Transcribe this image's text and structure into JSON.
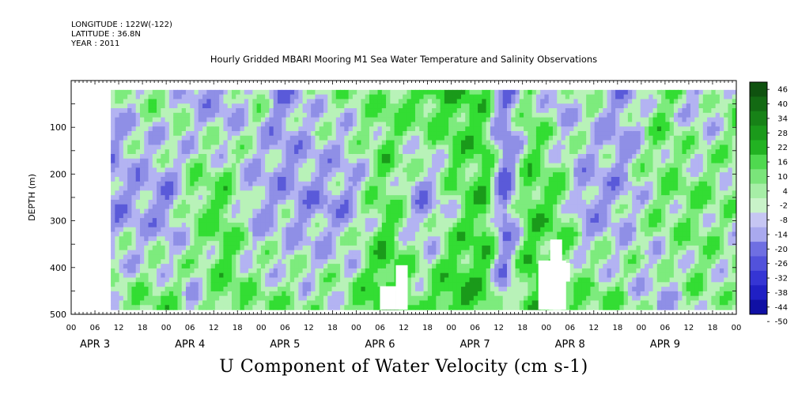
{
  "header": {
    "longitude": "LONGITUDE : 122W(-122)",
    "latitude": "LATITUDE : 36.8N",
    "year": "YEAR : 2011",
    "title": "Hourly Gridded MBARI Mooring M1 Sea Water Temperature and Salinity Observations"
  },
  "caption": "U Component of Water Velocity (cm s-1)",
  "chart_data": {
    "type": "heatmap",
    "title": "Hourly Gridded MBARI Mooring M1 Sea Water Temperature and Salinity Observations",
    "xlabel": "",
    "ylabel": "DEPTH (m)",
    "variable": "U Component of Water Velocity (cm s-1)",
    "x_range": [
      "APR 3 00:00",
      "APR 10 00:00"
    ],
    "y_range": [
      0,
      500
    ],
    "y_inverted": true,
    "y_ticks": [
      100,
      200,
      300,
      400,
      500
    ],
    "x_day_labels": [
      "APR 3",
      "APR 4",
      "APR 5",
      "APR 6",
      "APR 7",
      "APR 8",
      "APR 9"
    ],
    "x_hour_labels": [
      "00",
      "06",
      "12",
      "18",
      "00",
      "06",
      "12",
      "18",
      "00",
      "06",
      "12",
      "18",
      "00",
      "06",
      "12",
      "18",
      "00",
      "06",
      "12",
      "18",
      "00",
      "06",
      "12",
      "18",
      "00",
      "06",
      "12",
      "18",
      "00"
    ],
    "colorbar_levels": [
      -50,
      -44,
      -38,
      -32,
      -26,
      -20,
      -14,
      -8,
      -2,
      4,
      10,
      16,
      22,
      28,
      34,
      40,
      46
    ],
    "colorbar_labels": [
      "46",
      "40",
      "34",
      "28",
      "22",
      "16",
      "10",
      "4",
      "-2",
      "-8",
      "-14",
      "-20",
      "-26",
      "-32",
      "-38",
      "-44",
      "-50"
    ],
    "colors": {
      "negative_light": "#b3b3f2",
      "negative_mid": "#8f8fe6",
      "negative_dark": "#5a5ad9",
      "near_zero_pos": "#b8f2b8",
      "positive_light": "#7deb7d",
      "positive_mid": "#33dd33",
      "positive_dark": "#1a9a1a"
    },
    "data_depth_range": [
      20,
      490
    ],
    "data_start": "APR 3 10:00",
    "column_profiles": [
      {
        "x": 0.0,
        "surface": -4,
        "mid": -10,
        "deep": 6
      },
      {
        "x": 0.05,
        "surface": 4,
        "mid": -8,
        "deep": 10
      },
      {
        "x": 0.09,
        "surface": 8,
        "mid": -12,
        "deep": 12
      },
      {
        "x": 0.13,
        "surface": -6,
        "mid": 10,
        "deep": -4
      },
      {
        "x": 0.18,
        "surface": -10,
        "mid": 14,
        "deep": 12
      },
      {
        "x": 0.23,
        "surface": 6,
        "mid": -8,
        "deep": 10
      },
      {
        "x": 0.27,
        "surface": -12,
        "mid": -6,
        "deep": 8
      },
      {
        "x": 0.32,
        "surface": 2,
        "mid": -10,
        "deep": 6
      },
      {
        "x": 0.38,
        "surface": 4,
        "mid": -8,
        "deep": 8
      },
      {
        "x": 0.44,
        "surface": 10,
        "mid": 14,
        "deep": 22
      },
      {
        "x": 0.5,
        "surface": 16,
        "mid": -12,
        "deep": 12
      },
      {
        "x": 0.55,
        "surface": 20,
        "mid": 6,
        "deep": 22
      },
      {
        "x": 0.6,
        "surface": 12,
        "mid": 18,
        "deep": 16
      },
      {
        "x": 0.63,
        "surface": -14,
        "mid": -18,
        "deep": -8
      },
      {
        "x": 0.67,
        "surface": 10,
        "mid": 16,
        "deep": 18
      },
      {
        "x": 0.72,
        "surface": -8,
        "mid": 12,
        "deep": 10
      },
      {
        "x": 0.76,
        "surface": 6,
        "mid": -10,
        "deep": 14
      },
      {
        "x": 0.82,
        "surface": -10,
        "mid": -6,
        "deep": 8
      },
      {
        "x": 0.88,
        "surface": 12,
        "mid": 8,
        "deep": -6
      },
      {
        "x": 0.94,
        "surface": -6,
        "mid": 10,
        "deep": 6
      },
      {
        "x": 1.0,
        "surface": 8,
        "mid": 4,
        "deep": 2
      }
    ]
  }
}
